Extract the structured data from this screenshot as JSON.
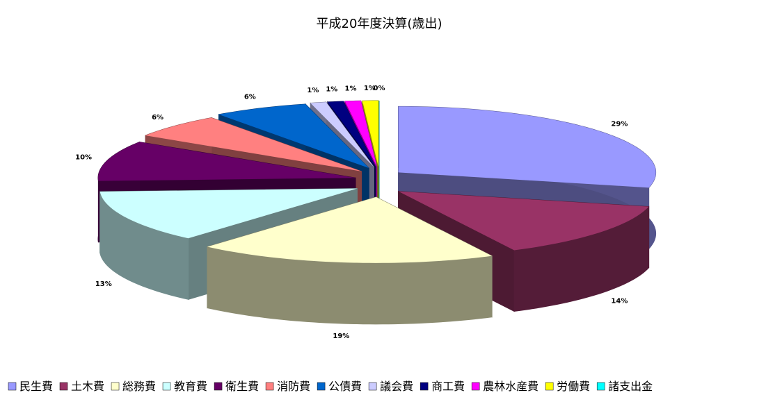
{
  "chart_data": {
    "type": "pie3d",
    "title": "平成20年度決算(歳出)",
    "categories": [
      "民生費",
      "土木費",
      "総務費",
      "教育費",
      "衛生費",
      "消防費",
      "公債費",
      "議会費",
      "商工費",
      "農林水産費",
      "労働費",
      "諸支出金"
    ],
    "values": [
      29,
      14,
      19,
      13,
      10,
      6,
      6,
      1,
      1,
      1,
      1,
      0
    ],
    "value_labels": [
      "29%",
      "14%",
      "19%",
      "13%",
      "10%",
      "6%",
      "6%",
      "1%",
      "1%",
      "1%",
      "1%",
      "0%"
    ],
    "colors": [
      "#9999ff",
      "#993366",
      "#ffffcc",
      "#ccffff",
      "#660066",
      "#ff8080",
      "#0066cc",
      "#ccccff",
      "#000080",
      "#ff00ff",
      "#ffff00",
      "#00ffff"
    ],
    "legend": "bottom"
  }
}
